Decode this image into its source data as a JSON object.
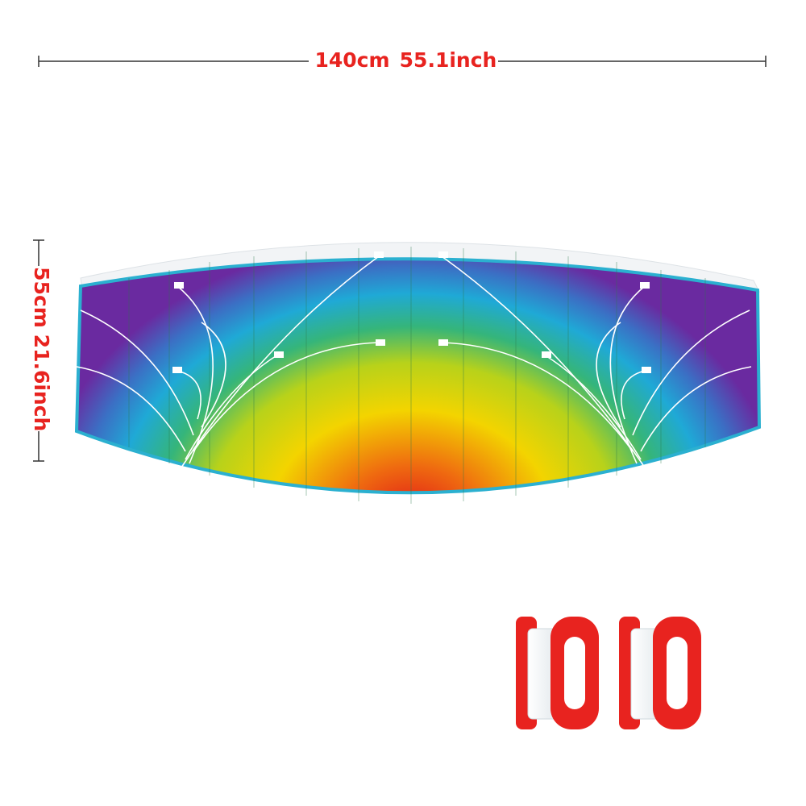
{
  "width_label": {
    "cm": "140cm",
    "inch": "55.1inch"
  },
  "height_label": {
    "cm": "55cm",
    "inch": "21.6inch"
  }
}
